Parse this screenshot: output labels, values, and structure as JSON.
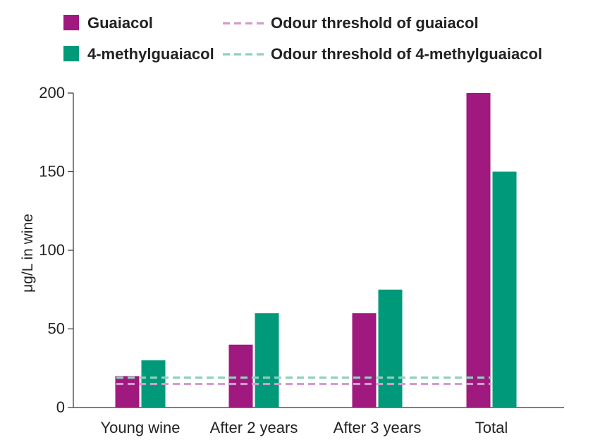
{
  "chart_data": {
    "type": "bar",
    "ylabel": "μg/L in wine",
    "categories": [
      "Young wine",
      "After 2 years",
      "After 3 years",
      "Total"
    ],
    "series": [
      {
        "name": "Guaiacol",
        "values": [
          20,
          40,
          60,
          200
        ],
        "color": "#a0197e"
      },
      {
        "name": "4-methylguaiacol",
        "values": [
          30,
          60,
          75,
          150
        ],
        "color": "#009a7a"
      }
    ],
    "thresholds": [
      {
        "name": "Odour threshold of guaiacol",
        "value": 15,
        "color": "#d39ccd"
      },
      {
        "name": "Odour threshold of 4-methylguaiacol",
        "value": 19,
        "color": "#8fd0bc"
      }
    ],
    "ylim": [
      0,
      200
    ],
    "yticks": [
      0,
      50,
      100,
      150,
      200
    ],
    "legend_position": "top",
    "grid": false
  }
}
